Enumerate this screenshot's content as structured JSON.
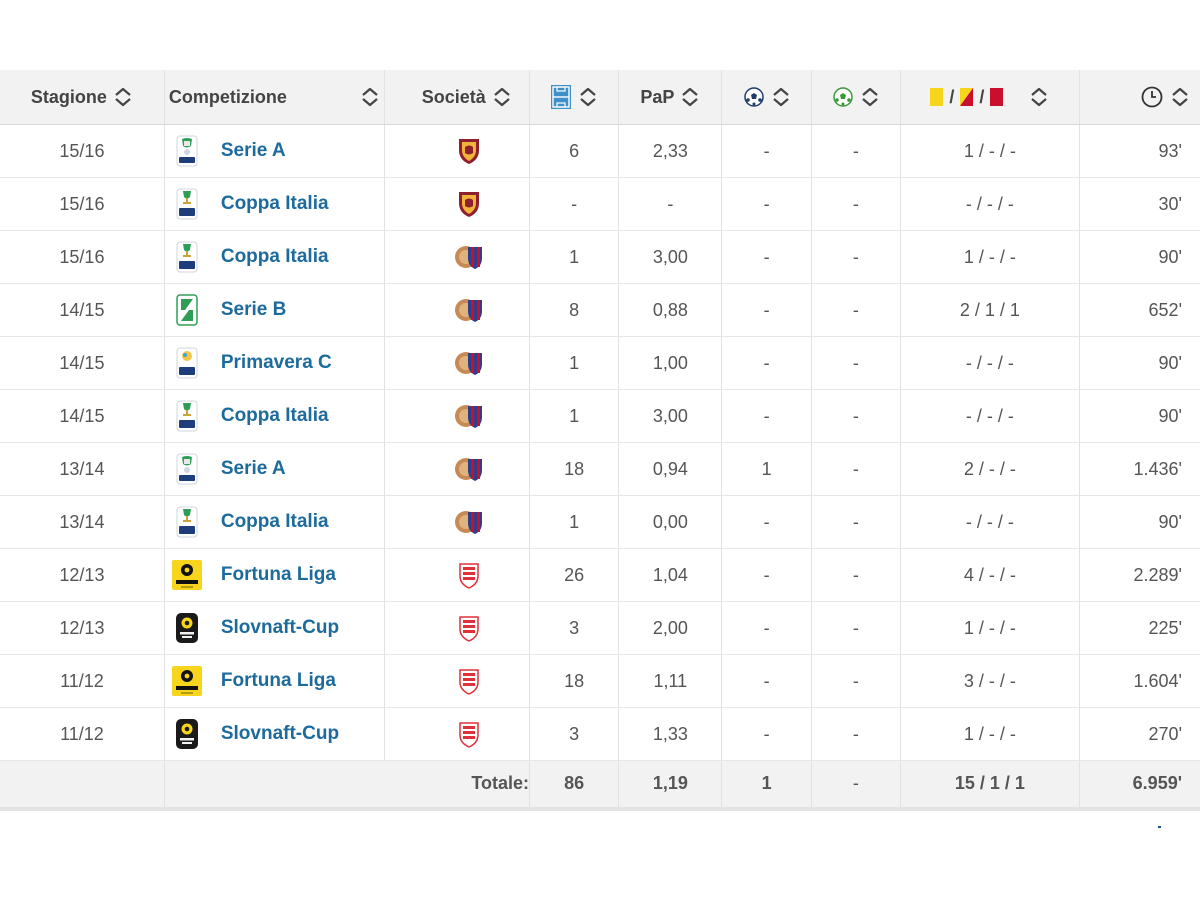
{
  "header": {
    "season": "Stagione",
    "competition": "Competizione",
    "club": "Società",
    "pap": "PaP",
    "cards_sep": "/",
    "icons": {
      "apps": "pitch-icon",
      "goals": "ball-icon",
      "own_goals": "green-ball-icon",
      "cards": "yellow-yellowred-red-card-icons",
      "minutes": "clock-icon",
      "sort": "sort-arrows-icon"
    }
  },
  "rows": [
    {
      "season": "15/16",
      "competition": "Serie A",
      "comp_logo": "serie-a-logo",
      "club_logo": "roma-crest",
      "apps": "6",
      "pap": "2,33",
      "goals": "-",
      "own_goals": "-",
      "cards": "1 / - / -",
      "minutes": "93'"
    },
    {
      "season": "15/16",
      "competition": "Coppa Italia",
      "comp_logo": "coppa-italia-logo",
      "club_logo": "roma-crest",
      "apps": "-",
      "pap": "-",
      "goals": "-",
      "own_goals": "-",
      "cards": "- / - / -",
      "minutes": "30'"
    },
    {
      "season": "15/16",
      "competition": "Coppa Italia",
      "comp_logo": "coppa-italia-logo",
      "club_logo": "catania-crest",
      "apps": "1",
      "pap": "3,00",
      "goals": "-",
      "own_goals": "-",
      "cards": "1 / - / -",
      "minutes": "90'"
    },
    {
      "season": "14/15",
      "competition": "Serie B",
      "comp_logo": "serie-b-logo",
      "club_logo": "catania-crest",
      "apps": "8",
      "pap": "0,88",
      "goals": "-",
      "own_goals": "-",
      "cards": "2 / 1 / 1",
      "minutes": "652'"
    },
    {
      "season": "14/15",
      "competition": "Primavera C",
      "comp_logo": "primavera-logo",
      "club_logo": "catania-crest",
      "apps": "1",
      "pap": "1,00",
      "goals": "-",
      "own_goals": "-",
      "cards": "- / - / -",
      "minutes": "90'"
    },
    {
      "season": "14/15",
      "competition": "Coppa Italia",
      "comp_logo": "coppa-italia-logo",
      "club_logo": "catania-crest",
      "apps": "1",
      "pap": "3,00",
      "goals": "-",
      "own_goals": "-",
      "cards": "- / - / -",
      "minutes": "90'"
    },
    {
      "season": "13/14",
      "competition": "Serie A",
      "comp_logo": "serie-a-logo",
      "club_logo": "catania-crest",
      "apps": "18",
      "pap": "0,94",
      "goals": "1",
      "own_goals": "-",
      "cards": "2 / - / -",
      "minutes": "1.436'"
    },
    {
      "season": "13/14",
      "competition": "Coppa Italia",
      "comp_logo": "coppa-italia-logo",
      "club_logo": "catania-crest",
      "apps": "1",
      "pap": "0,00",
      "goals": "-",
      "own_goals": "-",
      "cards": "- / - / -",
      "minutes": "90'"
    },
    {
      "season": "12/13",
      "competition": "Fortuna Liga",
      "comp_logo": "fortuna-liga-logo",
      "club_logo": "trnava-crest",
      "apps": "26",
      "pap": "1,04",
      "goals": "-",
      "own_goals": "-",
      "cards": "4 / - / -",
      "minutes": "2.289'"
    },
    {
      "season": "12/13",
      "competition": "Slovnaft-Cup",
      "comp_logo": "slovnaft-cup-logo",
      "club_logo": "trnava-crest",
      "apps": "3",
      "pap": "2,00",
      "goals": "-",
      "own_goals": "-",
      "cards": "1 / - / -",
      "minutes": "225'"
    },
    {
      "season": "11/12",
      "competition": "Fortuna Liga",
      "comp_logo": "fortuna-liga-logo",
      "club_logo": "trnava-crest",
      "apps": "18",
      "pap": "1,11",
      "goals": "-",
      "own_goals": "-",
      "cards": "3 / - / -",
      "minutes": "1.604'"
    },
    {
      "season": "11/12",
      "competition": "Slovnaft-Cup",
      "comp_logo": "slovnaft-cup-logo",
      "club_logo": "trnava-crest",
      "apps": "3",
      "pap": "1,33",
      "goals": "-",
      "own_goals": "-",
      "cards": "1 / - / -",
      "minutes": "270'"
    }
  ],
  "footer": {
    "label": "Totale:",
    "apps": "86",
    "pap": "1,19",
    "goals": "1",
    "own_goals": "-",
    "cards": "15 / 1 / 1",
    "minutes": "6.959'"
  },
  "colors": {
    "link": "#1d6a9c",
    "header_bg": "#f2f2f2",
    "yellow_card": "#f7d51d",
    "red_card": "#c8102e",
    "roma": "#8e1f2f",
    "catania_blue": "#2b3f8c",
    "trnava_red": "#e0303a"
  }
}
